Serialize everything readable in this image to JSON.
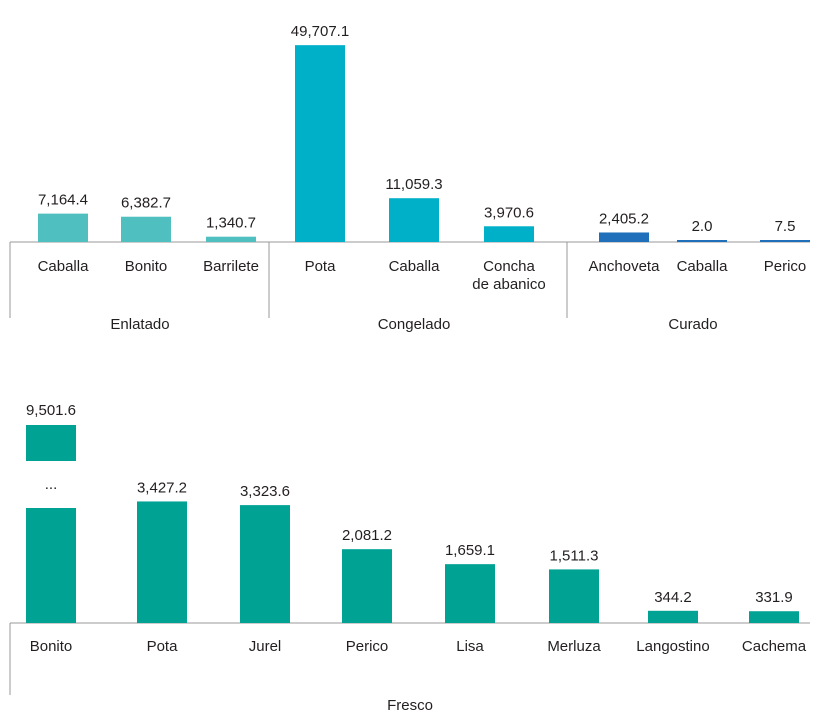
{
  "chart_data": [
    {
      "type": "bar",
      "axis_min": 0,
      "axis_max": 50000,
      "groups": [
        {
          "name": "Enlatado",
          "color": "#4fbfbf",
          "categories": [
            "Caballa",
            "Bonito",
            "Barrilete"
          ],
          "values": [
            7164.4,
            6382.7,
            1340.7
          ],
          "labels": [
            "7,164.4",
            "6,382.7",
            "1,340.7"
          ]
        },
        {
          "name": "Congelado",
          "color": "#00b0c8",
          "categories": [
            "Pota",
            "Caballa",
            "Concha de abanico"
          ],
          "category_lines": [
            [
              "Pota"
            ],
            [
              "Caballa"
            ],
            [
              "Concha",
              "de abanico"
            ]
          ],
          "values": [
            49707.1,
            11059.3,
            3970.6
          ],
          "labels": [
            "49,707.1",
            "11,059.3",
            "3,970.6"
          ]
        },
        {
          "name": "Curado",
          "color": "#1f6fbb",
          "categories": [
            "Anchoveta",
            "Caballa",
            "Perico"
          ],
          "values": [
            2405.2,
            2.0,
            7.5
          ],
          "labels": [
            "2,405.2",
            "2.0",
            "7.5"
          ]
        }
      ]
    },
    {
      "type": "bar",
      "axis_min": 0,
      "axis_max": 3750,
      "color": "#00a294",
      "group": "Fresco",
      "broken_bar_index": 0,
      "break_marker": "...",
      "categories": [
        "Bonito",
        "Pota",
        "Jurel",
        "Perico",
        "Lisa",
        "Merluza",
        "Langostino",
        "Cachema"
      ],
      "values": [
        9501.6,
        3427.2,
        3323.6,
        2081.2,
        1659.1,
        1511.3,
        344.2,
        331.9
      ],
      "labels": [
        "9,501.6",
        "3,427.2",
        "3,323.6",
        "2,081.2",
        "1,659.1",
        "1,511.3",
        "344.2",
        "331.9"
      ]
    }
  ]
}
